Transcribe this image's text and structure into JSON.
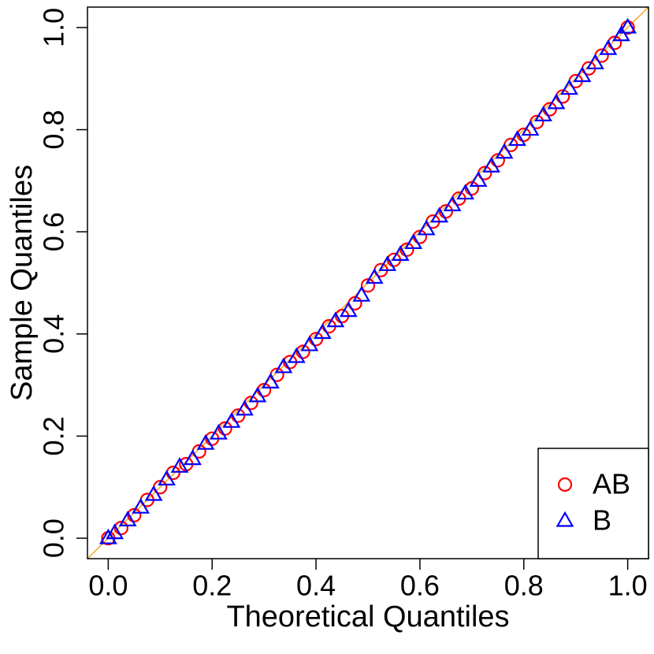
{
  "chart_data": {
    "type": "scatter",
    "xlabel": "Theoretical Quantiles",
    "ylabel": "Sample Quantiles",
    "xlim": [
      -0.04,
      1.04
    ],
    "ylim": [
      -0.04,
      1.04
    ],
    "xticks": [
      {
        "value": 0,
        "label": "0.0"
      },
      0.2,
      0.4,
      0.6,
      0.8,
      {
        "value": 1,
        "label": "1.0"
      }
    ],
    "yticks": [
      {
        "value": 0,
        "label": "0.0"
      },
      0.2,
      0.4,
      0.6,
      0.8,
      {
        "value": 1,
        "label": "1.0"
      }
    ],
    "reference_line_color": "#f5a623",
    "legend": "bottom-right",
    "series": [
      {
        "name": "AB",
        "color": "#ff0000",
        "marker": "circle",
        "x": [
          0,
          0.025,
          0.05,
          0.075,
          0.1,
          0.125,
          0.15,
          0.175,
          0.2,
          0.225,
          0.25,
          0.275,
          0.3,
          0.325,
          0.35,
          0.375,
          0.4,
          0.425,
          0.45,
          0.475,
          0.5,
          0.525,
          0.55,
          0.575,
          0.6,
          0.625,
          0.65,
          0.675,
          0.7,
          0.725,
          0.75,
          0.775,
          0.8,
          0.825,
          0.85,
          0.875,
          0.9,
          0.925,
          0.95,
          0.975,
          1
        ],
        "values": [
          0,
          0.02,
          0.045,
          0.075,
          0.1,
          0.128,
          0.145,
          0.17,
          0.195,
          0.215,
          0.24,
          0.265,
          0.29,
          0.32,
          0.345,
          0.365,
          0.39,
          0.415,
          0.435,
          0.46,
          0.495,
          0.525,
          0.545,
          0.565,
          0.59,
          0.62,
          0.64,
          0.665,
          0.685,
          0.715,
          0.74,
          0.77,
          0.79,
          0.815,
          0.84,
          0.865,
          0.895,
          0.92,
          0.945,
          0.97,
          1
        ]
      },
      {
        "name": "B",
        "color": "#0000ff",
        "marker": "triangle",
        "x": [
          0,
          0.0125,
          0.0375,
          0.0625,
          0.0875,
          0.1125,
          0.1375,
          0.1625,
          0.1875,
          0.2125,
          0.2375,
          0.2625,
          0.2875,
          0.3125,
          0.3375,
          0.3625,
          0.3875,
          0.4125,
          0.4375,
          0.4625,
          0.4875,
          0.5125,
          0.5375,
          0.5625,
          0.5875,
          0.6125,
          0.6375,
          0.6625,
          0.6875,
          0.7125,
          0.7375,
          0.7625,
          0.7875,
          0.8125,
          0.8375,
          0.8625,
          0.8875,
          0.9125,
          0.9375,
          0.9625,
          0.9875,
          1
        ],
        "values": [
          0,
          0.01,
          0.035,
          0.06,
          0.085,
          0.115,
          0.14,
          0.155,
          0.185,
          0.205,
          0.228,
          0.252,
          0.278,
          0.305,
          0.335,
          0.355,
          0.378,
          0.402,
          0.425,
          0.445,
          0.475,
          0.51,
          0.535,
          0.555,
          0.578,
          0.605,
          0.63,
          0.652,
          0.675,
          0.7,
          0.728,
          0.755,
          0.78,
          0.8,
          0.828,
          0.852,
          0.88,
          0.905,
          0.93,
          0.958,
          0.985,
          1
        ]
      }
    ]
  }
}
